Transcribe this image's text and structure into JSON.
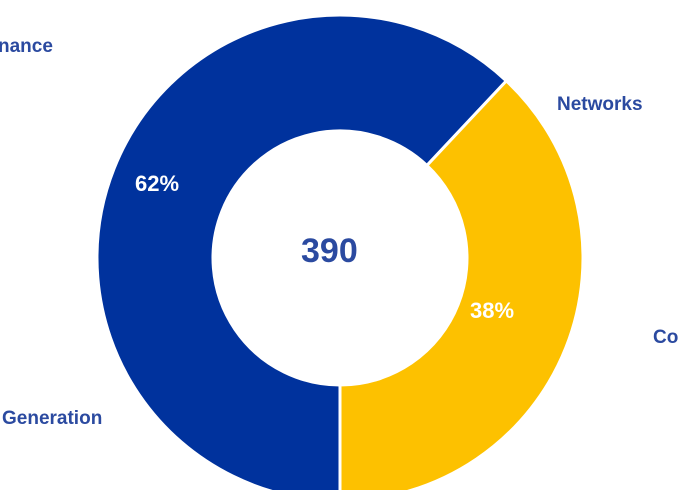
{
  "chart_data": {
    "type": "pie",
    "center_total": "390",
    "segments": [
      {
        "name": "Generation",
        "value": 62,
        "label": "62%",
        "color": "#00329d"
      },
      {
        "name": "Networks",
        "value": 38,
        "label": "38%",
        "color": "#fdc100"
      }
    ]
  },
  "labels": {
    "top_left": "nance",
    "networks": "Networks",
    "right_cut": "Co",
    "generation": "Generation"
  }
}
